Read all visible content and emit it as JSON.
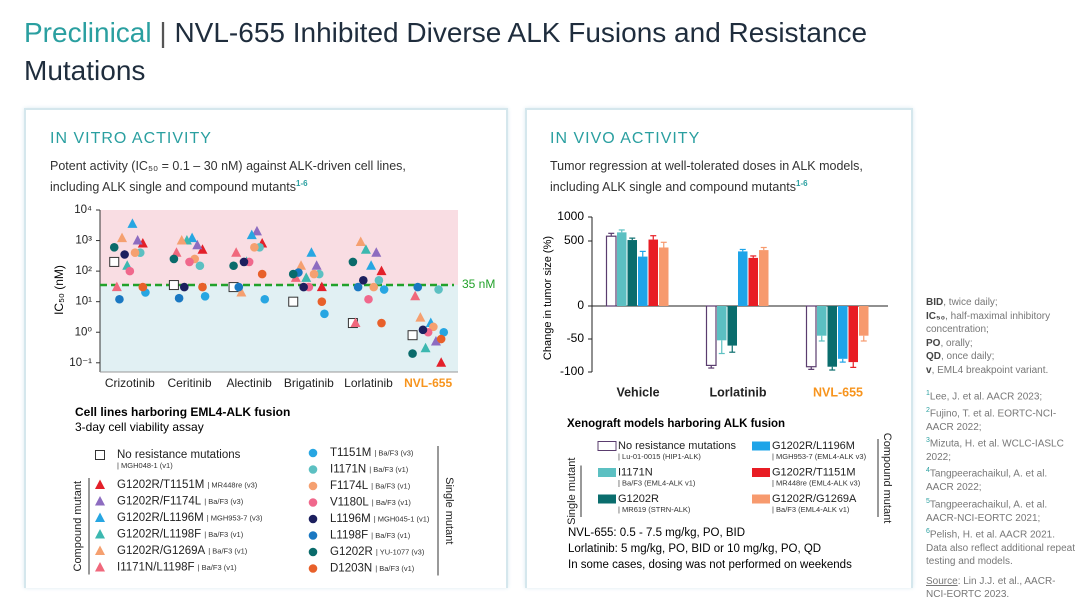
{
  "header": {
    "highlight": "Preclinical",
    "separator": "|",
    "title": "NVL-655 Inhibited Diverse ALK Fusions and Resistance Mutations"
  },
  "panels": [
    {
      "heading": "IN VITRO ACTIVITY",
      "lines": [
        "Potent activity (IC₅₀ = 0.1 – 30 nM) against ALK-driven cell lines,",
        "including ALK single and compound mutants"
      ],
      "superscript": "1-6",
      "caption": "Cell lines harboring EML4-ALK fusion",
      "subcaption": "3-day cell viability assay"
    },
    {
      "heading": "IN VIVO ACTIVITY",
      "lines": [
        "Tumor regression at well-tolerated doses in ALK models,",
        "including ALK single and compound mutants"
      ],
      "superscript": "1-6",
      "caption": "Xenograft models harboring ALK fusion",
      "notes": [
        "NVL-655: 0.5 - 7.5 mg/kg, PO, BID",
        "Lorlatinib: 5 mg/kg, PO, BID or 10 mg/kg, PO, QD",
        "In some cases, dosing was not performed on weekends"
      ]
    }
  ],
  "chart_data": [
    {
      "type": "scatter",
      "y_label": "IC₅₀ (nM)",
      "log_scale": true,
      "categories": [
        "Crizotinib",
        "Ceritinib",
        "Alectinib",
        "Brigatinib",
        "Lorlatinib",
        "NVL-655"
      ],
      "category_colors": [
        "#222222",
        "#222222",
        "#222222",
        "#222222",
        "#222222",
        "#f7941d"
      ],
      "ylim": [
        0.05,
        10000
      ],
      "yticks": [
        {
          "value": 0.1,
          "label": "10⁻¹"
        },
        {
          "value": 1,
          "label": "10⁰"
        },
        {
          "value": 10,
          "label": "10¹"
        },
        {
          "value": 100,
          "label": "10²"
        },
        {
          "value": 1000,
          "label": "10³"
        },
        {
          "value": 10000,
          "label": "10⁴"
        }
      ],
      "threshold": {
        "value": 35,
        "label": "35 nM",
        "color": "#22a12a"
      },
      "region_colors": {
        "above": "#f9dde3",
        "below": "#e1f0f3"
      },
      "legend_groups": [
        "Compound mutant",
        "Single mutant"
      ],
      "series": [
        {
          "name": "No resistance mutations",
          "detail": "| MGH048-1 (v1)",
          "marker": "square",
          "color": "#ffffff",
          "values": [
            200,
            35,
            30,
            10,
            2,
            0.8
          ]
        },
        {
          "name": "G1202R/T1151M",
          "detail": "| MR448re (v3)",
          "marker": "triangle",
          "group": 0,
          "color": "#e3202a",
          "values": [
            800,
            500,
            800,
            30,
            100,
            0.1
          ]
        },
        {
          "name": "G1202R/F1174L",
          "detail": "| Ba/F3 (v3)",
          "marker": "triangle",
          "group": 0,
          "color": "#8d6cc0",
          "values": [
            1000,
            700,
            2000,
            150,
            400,
            0.5
          ]
        },
        {
          "name": "G1202R/L1196M",
          "detail": "| MGH953-7 (v3)",
          "marker": "triangle",
          "group": 0,
          "color": "#27a6e2",
          "values": [
            3500,
            1200,
            1500,
            400,
            150,
            2
          ]
        },
        {
          "name": "G1202R/L1198F",
          "detail": "| Ba/F3 (v1)",
          "marker": "triangle",
          "group": 0,
          "color": "#3cb8b0",
          "values": [
            150,
            1000,
            200,
            60,
            500,
            0.3
          ]
        },
        {
          "name": "G1202R/G1269A",
          "detail": "| Ba/F3 (v1)",
          "marker": "triangle",
          "group": 0,
          "color": "#f5a070",
          "values": [
            1200,
            1000,
            20,
            150,
            900,
            3
          ]
        },
        {
          "name": "I1171N/L1198F",
          "detail": "| Ba/F3 (v1)",
          "marker": "triangle",
          "group": 0,
          "color": "#f0687c",
          "values": [
            30,
            400,
            400,
            60,
            2,
            15
          ]
        },
        {
          "name": "T1151M",
          "detail": "| Ba/F3 (v3)",
          "marker": "circle",
          "group": 1,
          "color": "#27a6e2",
          "values": [
            20,
            15,
            12,
            4,
            25,
            1
          ]
        },
        {
          "name": "I1171N",
          "detail": "| Ba/F3 (v1)",
          "marker": "circle",
          "group": 1,
          "color": "#5cc0c2",
          "values": [
            400,
            150,
            600,
            80,
            50,
            25
          ]
        },
        {
          "name": "F1174L",
          "detail": "| Ba/F3 (v1)",
          "marker": "circle",
          "group": 1,
          "color": "#f5a070",
          "values": [
            400,
            250,
            600,
            80,
            30,
            1.5
          ]
        },
        {
          "name": "V1180L",
          "detail": "| Ba/F3 (v1)",
          "marker": "circle",
          "group": 1,
          "color": "#f0688c",
          "values": [
            100,
            200,
            200,
            30,
            12,
            1
          ]
        },
        {
          "name": "L1196M",
          "detail": "| MGH045-1 (v1)",
          "marker": "circle",
          "group": 1,
          "color": "#1c1f5e",
          "values": [
            350,
            30,
            200,
            30,
            50,
            1.2
          ]
        },
        {
          "name": "L1198F",
          "detail": "| Ba/F3 (v1)",
          "marker": "circle",
          "group": 1,
          "color": "#1a78c2",
          "values": [
            12,
            13,
            30,
            90,
            30,
            30
          ]
        },
        {
          "name": "G1202R",
          "detail": "| YU-1077 (v3)",
          "marker": "circle",
          "group": 1,
          "color": "#0a6b6b",
          "values": [
            600,
            250,
            150,
            80,
            200,
            0.2
          ]
        },
        {
          "name": "D1203N",
          "detail": "| Ba/F3 (v1)",
          "marker": "circle",
          "group": 1,
          "color": "#e8602a",
          "values": [
            30,
            30,
            80,
            10,
            2,
            0.6
          ]
        }
      ]
    },
    {
      "type": "bar",
      "y_label": "Change in tumor size (%)",
      "categories": [
        "Vehicle",
        "Lorlatinib",
        "NVL-655"
      ],
      "category_colors": [
        "#222222",
        "#222222",
        "#f7941d"
      ],
      "ylim": [
        -100,
        1000
      ],
      "yticks": [
        -100,
        -50,
        0,
        500,
        1000
      ],
      "legend_groups": [
        "Single mutant",
        "Compound mutant"
      ],
      "series": [
        {
          "name": "No resistance mutations",
          "detail": "| Lu-01-0015 (HIP1-ALK)",
          "color": "#ffffff",
          "values": [
            600,
            -90,
            -92
          ],
          "errors": [
            60,
            4,
            4
          ]
        },
        {
          "name": "I1171N",
          "detail": "| Ba/F3 (EML4-ALK v1)",
          "group": 0,
          "color": "#5cc0c2",
          "values": [
            680,
            -52,
            -45
          ],
          "errors": [
            50,
            20,
            8
          ]
        },
        {
          "name": "G1202R",
          "detail": "| MR619 (STRN-ALK)",
          "group": 0,
          "color": "#0a6d6d",
          "values": [
            520,
            -60,
            -92
          ],
          "errors": [
            40,
            10,
            5
          ]
        },
        {
          "name": "G1202R/L1196M",
          "detail": "| MGH953-7 (EML4-ALK v3)",
          "group": 1,
          "color": "#1ea4e8",
          "values": [
            380,
            420,
            -80
          ],
          "errors": [
            40,
            15,
            5
          ]
        },
        {
          "name": "G1202R/T1151M",
          "detail": "| MR448re (EML4-ALK v3)",
          "group": 1,
          "color": "#e81c24",
          "values": [
            530,
            370,
            -85
          ],
          "errors": [
            80,
            15,
            8
          ]
        },
        {
          "name": "G1202R/G1269A",
          "detail": "| Ba/F3 (EML4-ALK v1)",
          "group": 1,
          "color": "#f79a6e",
          "values": [
            450,
            430,
            -45
          ],
          "errors": [
            40,
            20,
            8
          ]
        }
      ]
    }
  ],
  "sidebar": {
    "abbreviations": [
      {
        "term": "BID",
        "text": ", twice daily;"
      },
      {
        "term": "IC₅₀",
        "text": ", half-maximal inhibitory concentration;"
      },
      {
        "term": "PO",
        "text": ", orally;"
      },
      {
        "term": "QD",
        "text": ", once daily;"
      },
      {
        "term": "v",
        "text": ", EML4 breakpoint variant."
      }
    ],
    "references": [
      {
        "num": "1",
        "text": "Lee, J. et al. AACR 2023;"
      },
      {
        "num": "2",
        "text": "Fujino, T. et al. EORTC-NCI-AACR 2022;"
      },
      {
        "num": "3",
        "text": "Mizuta, H. et al. WCLC-IASLC 2022;"
      },
      {
        "num": "4",
        "text": "Tangpeerachaikul, A. et al. AACR 2022;"
      },
      {
        "num": "5",
        "text": "Tangpeerachaikul, A. et al. AACR-NCI-EORTC 2021;"
      },
      {
        "num": "6",
        "text": "Pelish, H. et al. AACR 2021. Data also reflect additional repeat testing and models."
      }
    ],
    "source": {
      "label": "Source",
      "text": ": Lin J.J. et al., AACR-NCI-EORTC 2023."
    }
  }
}
